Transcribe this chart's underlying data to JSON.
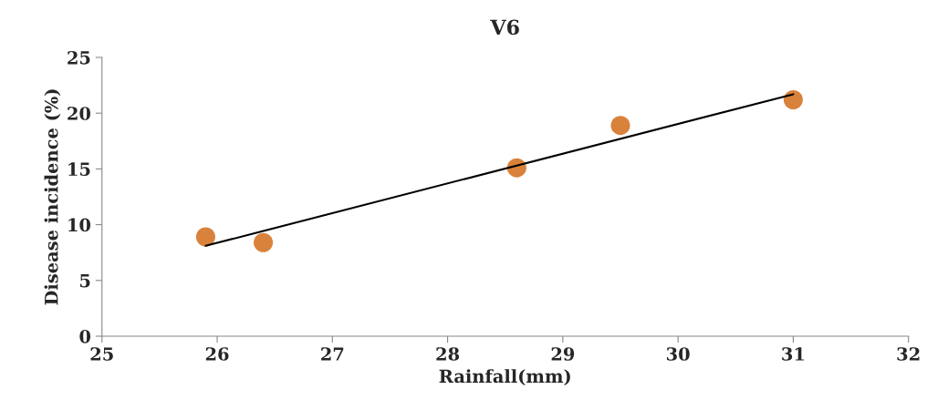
{
  "chart_data": {
    "type": "scatter",
    "title": "V6",
    "xlabel": "Rainfall(mm)",
    "ylabel": "Disease incidence (%)",
    "xlim": [
      25,
      32
    ],
    "xticks": [
      25,
      26,
      27,
      28,
      29,
      30,
      31,
      32
    ],
    "ylim": [
      0,
      25
    ],
    "yticks": [
      0,
      5,
      10,
      15,
      20,
      25
    ],
    "grid": false,
    "legend": false,
    "series": [
      {
        "color": "#d9823b",
        "marker": "circle",
        "x": [
          25.9,
          26.4,
          28.6,
          29.5,
          31.0
        ],
        "values": [
          8.9,
          8.4,
          15.1,
          18.9,
          21.2
        ]
      },
      {
        "type": "line",
        "color": "#000000",
        "marker": "none",
        "line_style": "solid",
        "x": [
          25.9,
          31.0
        ],
        "values": [
          8.1,
          21.7
        ]
      }
    ]
  }
}
